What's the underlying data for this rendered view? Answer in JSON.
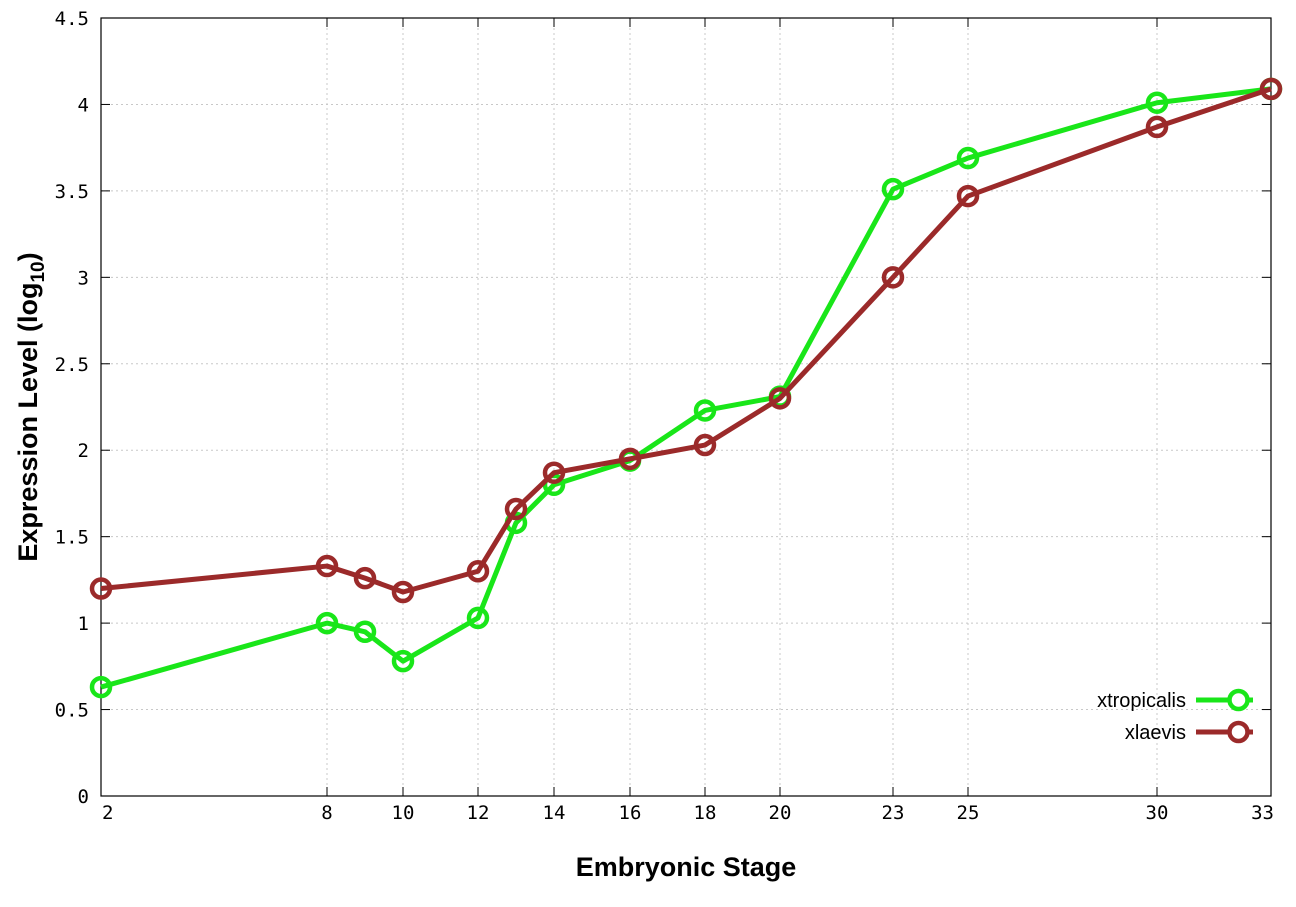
{
  "chart_data": {
    "type": "line",
    "xlabel": "Embryonic Stage",
    "ylabel_main": "Expression Level (log",
    "ylabel_sub": "10",
    "ylabel_close": ")",
    "x_ticks": [
      "2",
      "8",
      "10",
      "12",
      "14",
      "16",
      "18",
      "20",
      "23",
      "25",
      "30",
      "33"
    ],
    "y_ticks": [
      "0",
      "0.5",
      "1",
      "1.5",
      "2",
      "2.5",
      "3",
      "3.5",
      "4",
      "4.5"
    ],
    "ylim": [
      0,
      4.5
    ],
    "grid": true,
    "legend_position": "bottom-right",
    "categories": [
      "2",
      "8",
      "9",
      "10",
      "12",
      "13",
      "14",
      "16",
      "18",
      "20",
      "23",
      "25",
      "30",
      "33"
    ],
    "series": [
      {
        "name": "xtropicalis",
        "color": "#19e619",
        "values": [
          0.63,
          1.0,
          0.95,
          0.78,
          1.03,
          1.58,
          1.8,
          1.94,
          2.23,
          2.31,
          3.51,
          3.69,
          4.01,
          4.09
        ]
      },
      {
        "name": "xlaevis",
        "color": "#9b2a2a",
        "values": [
          1.2,
          1.33,
          1.26,
          1.18,
          1.3,
          1.66,
          1.87,
          1.95,
          2.03,
          2.3,
          3.0,
          3.47,
          3.87,
          4.09
        ]
      }
    ]
  }
}
